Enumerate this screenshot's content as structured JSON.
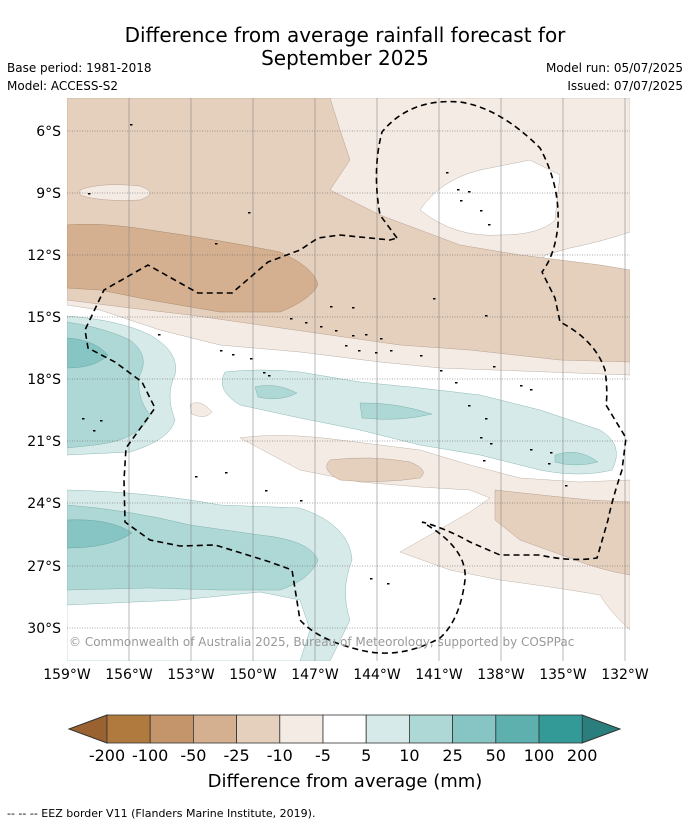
{
  "title_line1": "Difference from average rainfall forecast for",
  "title_line2": "September 2025",
  "base_period": "Base period: 1981-2018",
  "model": "Model: ACCESS-S2",
  "model_run": "Model run: 05/07/2025",
  "issued": "Issued: 07/07/2025",
  "copyright": "© Commonwealth of Australia 2025, Bureau of Meteorology, supported by COSPPac",
  "lat_labels": [
    "6°S",
    "9°S",
    "12°S",
    "15°S",
    "18°S",
    "21°S",
    "24°S",
    "27°S",
    "30°S"
  ],
  "lon_labels": [
    "159°W",
    "156°W",
    "153°W",
    "150°W",
    "147°W",
    "144°W",
    "141°W",
    "138°W",
    "135°W",
    "132°W"
  ],
  "colorbar": {
    "ticks": [
      "-200",
      "-100",
      "-50",
      "-25",
      "-10",
      "-5",
      "5",
      "10",
      "25",
      "50",
      "100",
      "200"
    ],
    "colors": [
      "#b07a3e",
      "#c4956a",
      "#d4b090",
      "#e5d0bd",
      "#f4ebe5",
      "#ffffff",
      "#d6ebe9",
      "#aed8d6",
      "#86c5c3",
      "#5eb0ae",
      "#339a98"
    ],
    "low_color": "#9a6230",
    "high_color": "#2a7e7c",
    "label": "Difference from average (mm)"
  },
  "footer": "--  --  -- EEZ border V11 (Flanders Marine Institute, 2019)."
}
